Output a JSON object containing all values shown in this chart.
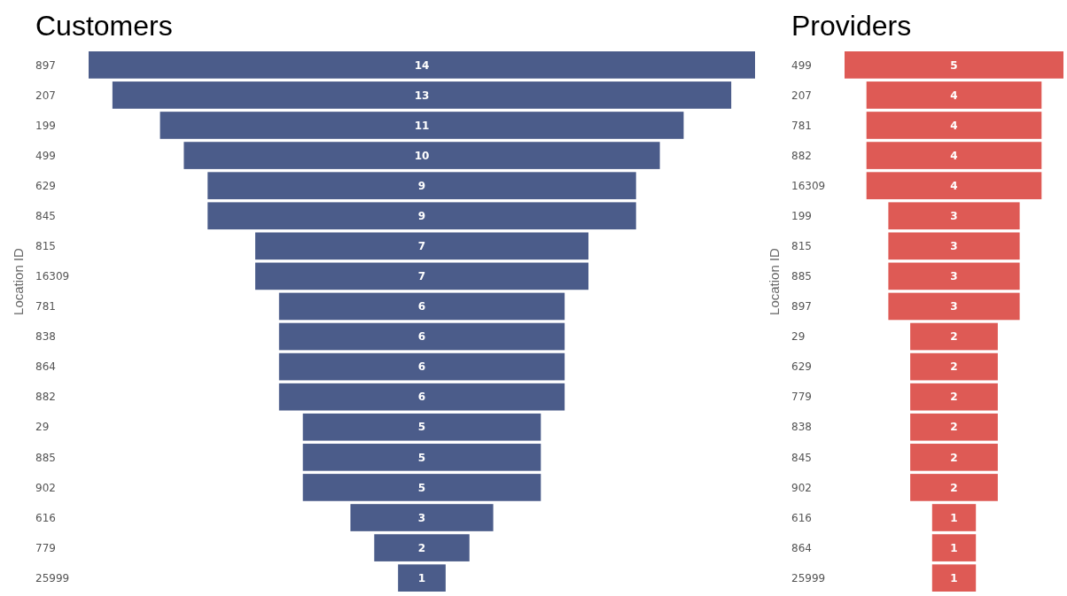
{
  "chart_data": [
    {
      "type": "other",
      "title": "Customers",
      "ylabel": "Location ID",
      "categories": [
        "897",
        "207",
        "199",
        "499",
        "629",
        "845",
        "815",
        "16309",
        "781",
        "838",
        "864",
        "882",
        "29",
        "885",
        "902",
        "616",
        "779",
        "25999"
      ],
      "values": [
        14,
        13,
        11,
        10,
        9,
        9,
        7,
        7,
        6,
        6,
        6,
        6,
        5,
        5,
        5,
        3,
        2,
        1
      ],
      "color": "#4b5c8a",
      "data_labels": true
    },
    {
      "type": "other",
      "title": "Providers",
      "ylabel": "Location ID",
      "categories": [
        "499",
        "207",
        "781",
        "882",
        "16309",
        "199",
        "815",
        "885",
        "897",
        "29",
        "629",
        "779",
        "838",
        "845",
        "902",
        "616",
        "864",
        "25999"
      ],
      "values": [
        5,
        4,
        4,
        4,
        4,
        3,
        3,
        3,
        3,
        2,
        2,
        2,
        2,
        2,
        2,
        1,
        1,
        1
      ],
      "color": "#de5a55",
      "data_labels": true
    }
  ]
}
